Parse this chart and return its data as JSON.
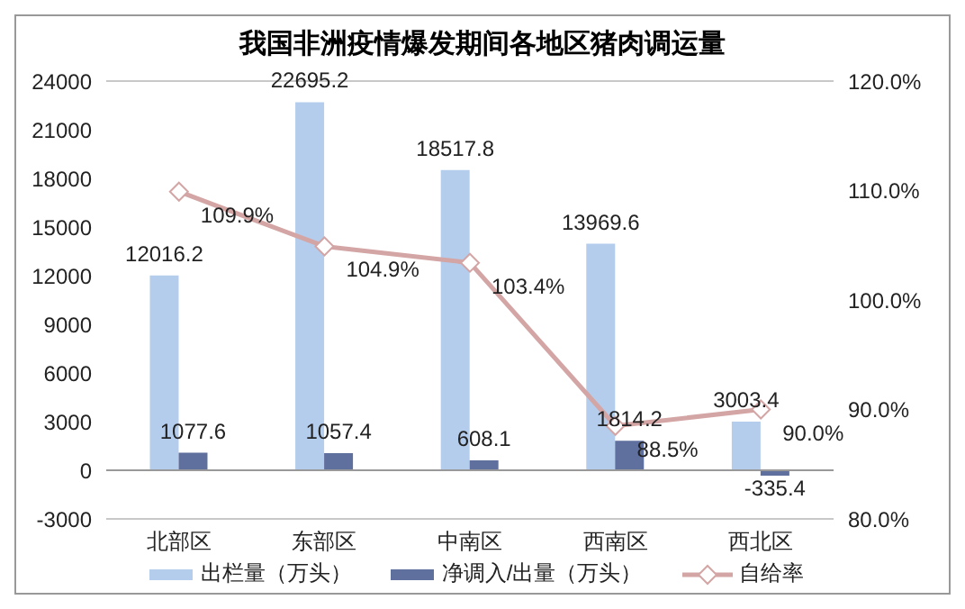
{
  "chart_data": {
    "type": "bar",
    "title": "我国非洲疫情爆发期间各地区猪肉调运量",
    "categories": [
      "北部区",
      "东部区",
      "中南区",
      "西南区",
      "西北区"
    ],
    "series": [
      {
        "name": "出栏量（万头）",
        "color": "#b4cdec",
        "values": [
          12016.2,
          22695.2,
          18517.8,
          13969.6,
          3003.4
        ]
      },
      {
        "name": "净调入/出量（万头）",
        "color": "#5f6f9e",
        "values": [
          1077.6,
          1057.4,
          608.1,
          1814.2,
          -335.4
        ]
      },
      {
        "name": "自给率",
        "type": "line",
        "axis": "y2",
        "color": "#d4a5a5",
        "marker": "diamond",
        "values": [
          109.9,
          104.9,
          103.4,
          88.5,
          90.0
        ],
        "value_labels": [
          "109.9%",
          "104.9%",
          "103.4%",
          "88.5%",
          "90.0%"
        ]
      }
    ],
    "ylim": [
      -3000,
      24000
    ],
    "yticks": [
      -3000,
      0,
      3000,
      6000,
      9000,
      12000,
      15000,
      18000,
      21000,
      24000
    ],
    "y2lim": [
      80,
      120
    ],
    "y2ticks": [
      {
        "value": 80,
        "label": "80.0%"
      },
      {
        "value": 90,
        "label": "90.0%"
      },
      {
        "value": 100,
        "label": "100.0%"
      },
      {
        "value": 110,
        "label": "110.0%"
      },
      {
        "value": 120,
        "label": "120.0%"
      }
    ],
    "grid": "y",
    "legend": "bottom",
    "data_labels": true
  }
}
